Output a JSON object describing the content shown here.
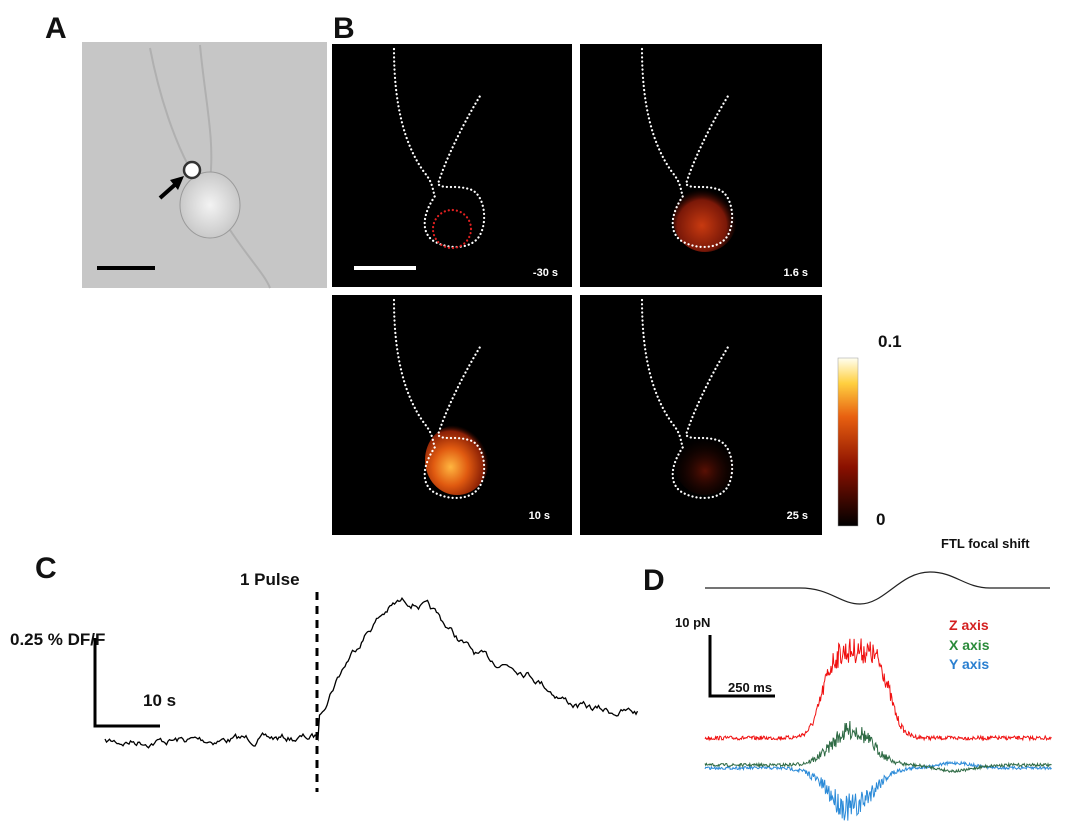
{
  "panels": {
    "a": {
      "label": "A"
    },
    "b": {
      "label": "B",
      "frames": [
        "-30 s",
        "1.6 s",
        "10 s",
        "25 s"
      ],
      "colorbar": {
        "max": "0.1",
        "min": "0"
      }
    },
    "c": {
      "label": "C",
      "stimulus": "1 Pulse",
      "y_scale": "0.25 % DF/F",
      "x_scale": "10 s"
    },
    "d": {
      "label": "D",
      "title": "FTL focal shift",
      "y_scale": "10 pN",
      "x_scale": "250 ms",
      "legend": [
        "Z axis",
        "X axis",
        "Y axis"
      ]
    }
  }
}
